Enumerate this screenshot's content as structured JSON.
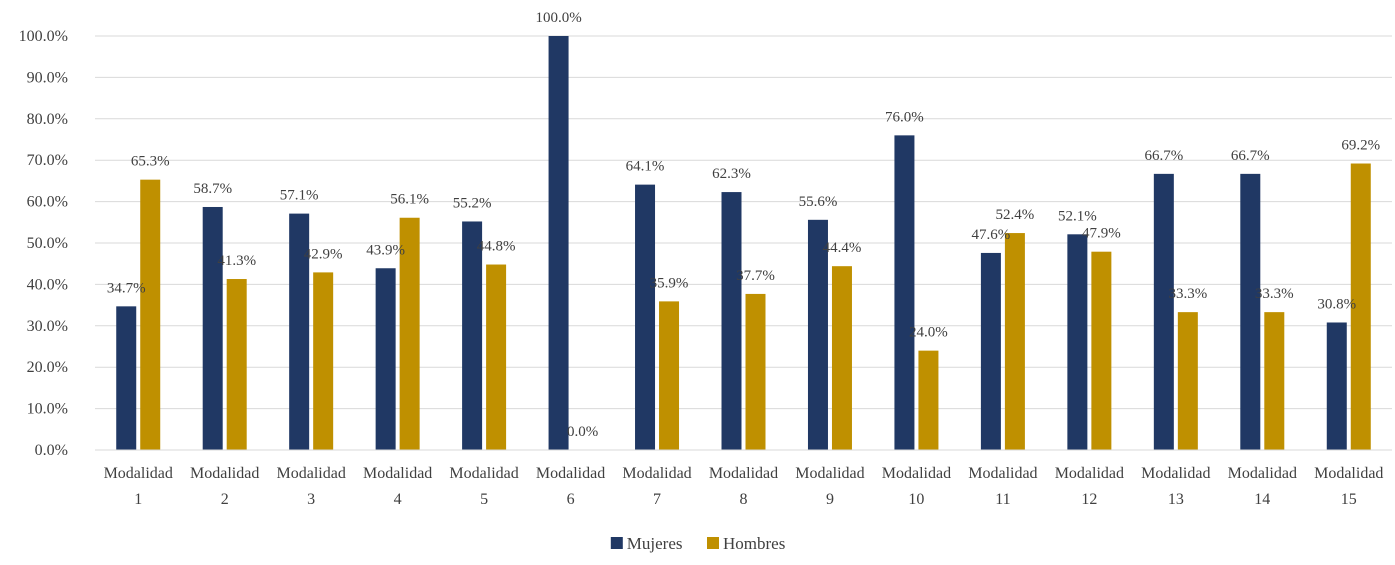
{
  "chart_data": {
    "type": "bar",
    "title": "",
    "xlabel": "",
    "ylabel": "",
    "ylim": [
      0,
      100
    ],
    "ytick_step": 10,
    "ytick_format": "percent_1dp",
    "grid": true,
    "legend": "bottom-center",
    "categories": [
      [
        "Modalidad",
        "1"
      ],
      [
        "Modalidad",
        "2"
      ],
      [
        "Modalidad",
        "3"
      ],
      [
        "Modalidad",
        "4"
      ],
      [
        "Modalidad",
        "5"
      ],
      [
        "Modalidad",
        "6"
      ],
      [
        "Modalidad",
        "7"
      ],
      [
        "Modalidad",
        "8"
      ],
      [
        "Modalidad",
        "9"
      ],
      [
        "Modalidad",
        "10"
      ],
      [
        "Modalidad",
        "11"
      ],
      [
        "Modalidad",
        "12"
      ],
      [
        "Modalidad",
        "13"
      ],
      [
        "Modalidad",
        "14"
      ],
      [
        "Modalidad",
        "15"
      ]
    ],
    "series": [
      {
        "name": "Mujeres",
        "color": "#203864",
        "values": [
          34.7,
          58.7,
          57.1,
          43.9,
          55.2,
          100.0,
          64.1,
          62.3,
          55.6,
          76.0,
          47.6,
          52.1,
          66.7,
          66.7,
          30.8
        ],
        "labels": [
          "34.7%",
          "58.7%",
          "57.1%",
          "43.9%",
          "55.2%",
          "100.0%",
          "64.1%",
          "62.3%",
          "55.6%",
          "76.0%",
          "47.6%",
          "52.1%",
          "66.7%",
          "66.7%",
          "30.8%"
        ]
      },
      {
        "name": "Hombres",
        "color": "#BF9000",
        "values": [
          65.3,
          41.3,
          42.9,
          56.1,
          44.8,
          0.0,
          35.9,
          37.7,
          44.4,
          24.0,
          52.4,
          47.9,
          33.3,
          33.3,
          69.2
        ],
        "labels": [
          "65.3%",
          "41.3%",
          "42.9%",
          "56.1%",
          "44.8%",
          "0.0%",
          "35.9%",
          "37.7%",
          "44.4%",
          "24.0%",
          "52.4%",
          "47.9%",
          "33.3%",
          "33.3%",
          "69.2%"
        ]
      }
    ]
  }
}
